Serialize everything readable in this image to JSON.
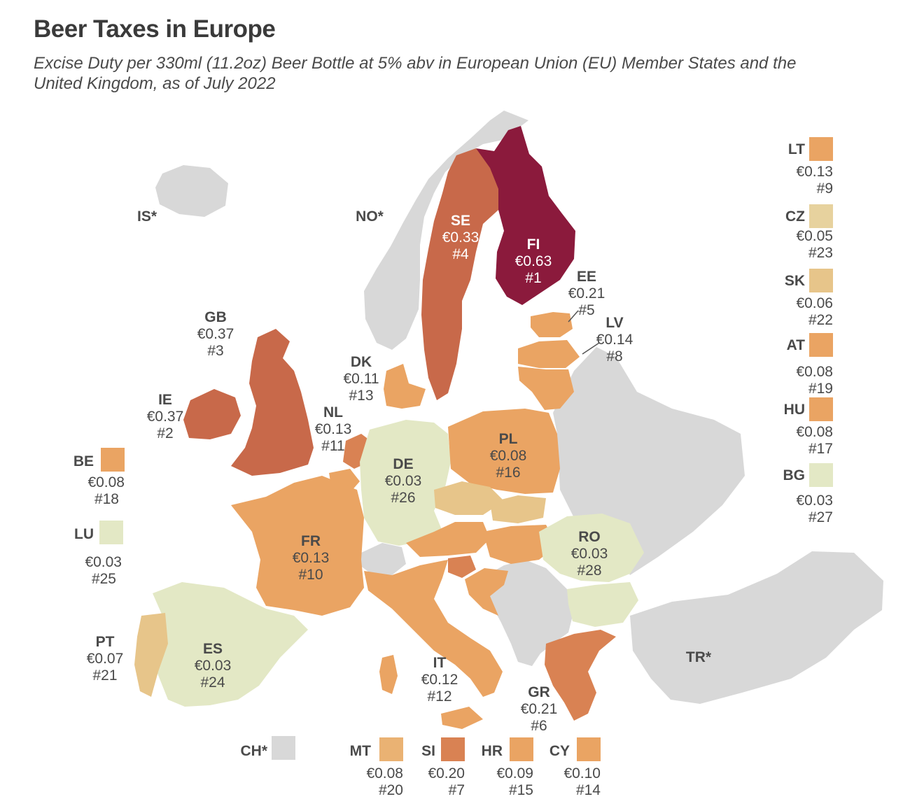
{
  "title": "Beer Taxes in Europe",
  "subtitle": "Excise Duty per 330ml (11.2oz) Beer Bottle at 5% abv in European Union (EU) Member States and the United Kingdom, as of July 2022",
  "colors": {
    "rank1": "#8b1a3c",
    "high": "#c8694a",
    "midhigh": "#d98253",
    "mid": "#eaa463",
    "low": "#e7c58a",
    "lowest": "#e3e8c5",
    "nodata": "#d8d8d8",
    "label_dark": "#4a4a4a",
    "label_light": "#ffffff"
  },
  "countries": {
    "FI": {
      "code": "FI",
      "value": "€0.63",
      "rank": "#1"
    },
    "IE": {
      "code": "IE",
      "value": "€0.37",
      "rank": "#2"
    },
    "GB": {
      "code": "GB",
      "value": "€0.37",
      "rank": "#3"
    },
    "SE": {
      "code": "SE",
      "value": "€0.33",
      "rank": "#4"
    },
    "EE": {
      "code": "EE",
      "value": "€0.21",
      "rank": "#5"
    },
    "GR": {
      "code": "GR",
      "value": "€0.21",
      "rank": "#6"
    },
    "LV": {
      "code": "LV",
      "value": "€0.14",
      "rank": "#8"
    },
    "NL": {
      "code": "NL",
      "value": "€0.13",
      "rank": "#11"
    },
    "DK": {
      "code": "DK",
      "value": "€0.11",
      "rank": "#13"
    },
    "PL": {
      "code": "PL",
      "value": "€0.08",
      "rank": "#16"
    },
    "DE": {
      "code": "DE",
      "value": "€0.03",
      "rank": "#26"
    },
    "FR": {
      "code": "FR",
      "value": "€0.13",
      "rank": "#10"
    },
    "RO": {
      "code": "RO",
      "value": "€0.03",
      "rank": "#28"
    },
    "IT": {
      "code": "IT",
      "value": "€0.12",
      "rank": "#12"
    },
    "ES": {
      "code": "ES",
      "value": "€0.03",
      "rank": "#24"
    },
    "PT": {
      "code": "PT",
      "value": "€0.07",
      "rank": "#21"
    }
  },
  "non_eu_labels": {
    "IS": "IS*",
    "NO": "NO*",
    "TR": "TR*",
    "CH": "CH*"
  },
  "legend_right": [
    {
      "code": "LT",
      "value": "€0.13",
      "rank": "#9"
    },
    {
      "code": "CZ",
      "value": "€0.05",
      "rank": "#23"
    },
    {
      "code": "SK",
      "value": "€0.06",
      "rank": "#22"
    },
    {
      "code": "AT",
      "value": "€0.08",
      "rank": "#19"
    },
    {
      "code": "HU",
      "value": "€0.08",
      "rank": "#17"
    },
    {
      "code": "BG",
      "value": "€0.03",
      "rank": "#27"
    }
  ],
  "legend_left": [
    {
      "code": "BE",
      "value": "€0.08",
      "rank": "#18"
    },
    {
      "code": "LU",
      "value": "€0.03",
      "rank": "#25"
    }
  ],
  "legend_bottom": [
    {
      "code": "MT",
      "value": "€0.08",
      "rank": "#20"
    },
    {
      "code": "SI",
      "value": "€0.20",
      "rank": "#7"
    },
    {
      "code": "HR",
      "value": "€0.09",
      "rank": "#15"
    },
    {
      "code": "CY",
      "value": "€0.10",
      "rank": "#14"
    }
  ]
}
